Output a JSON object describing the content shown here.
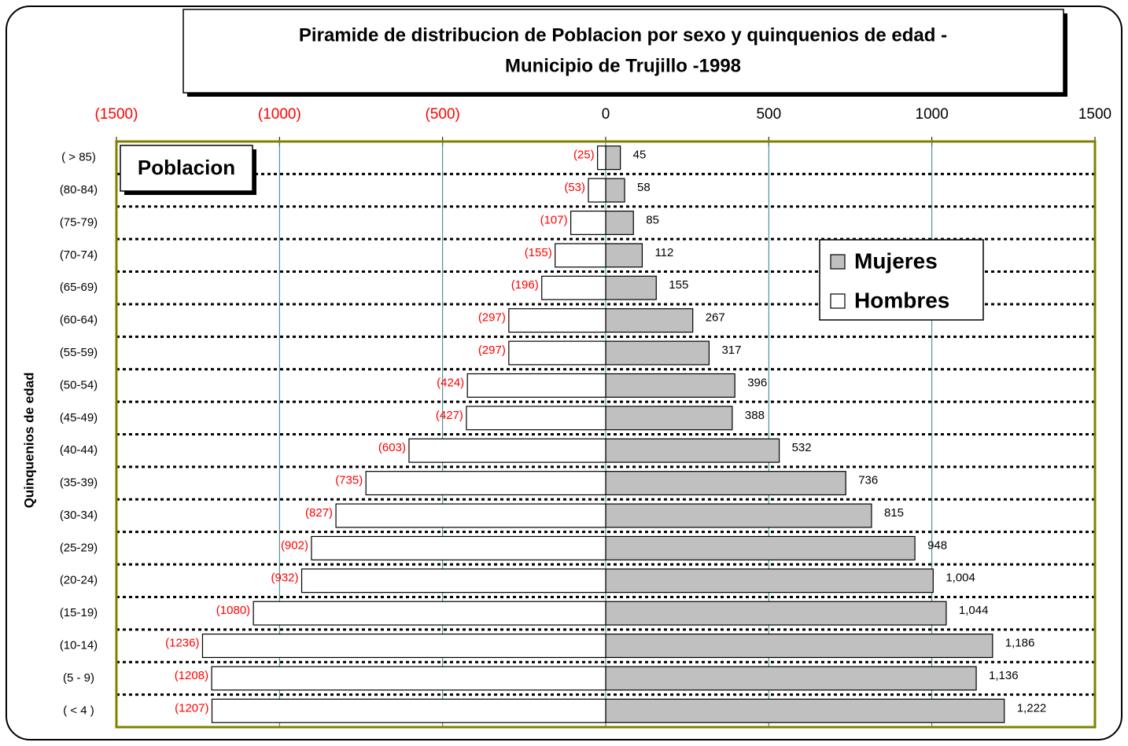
{
  "chart_data": {
    "type": "pyramid",
    "title": [
      "Piramide de distribucion de Poblacion por sexo y quinquenios de edad -",
      "Municipio de Trujillo -1998"
    ],
    "annotation": "Poblacion",
    "y_label": "Quinquenios de edad",
    "categories": [
      "( > 85)",
      "(80-84)",
      "(75-79)",
      "(70-74)",
      "(65-69)",
      "(60-64)",
      "(55-59)",
      "(50-54)",
      "(45-49)",
      "(40-44)",
      "(35-39)",
      "(30-34)",
      "(25-29)",
      "(20-24)",
      "(15-19)",
      "(10-14)",
      "(5  -  9)",
      "( < 4 )"
    ],
    "series": [
      {
        "name": "Mujeres",
        "color": "#c0c0c0",
        "label_color": "#000000",
        "values": [
          45,
          58,
          85,
          112,
          155,
          267,
          317,
          396,
          388,
          532,
          736,
          815,
          948,
          1004,
          1044,
          1186,
          1136,
          1222
        ],
        "value_labels": [
          "45",
          "58",
          "85",
          "112",
          "155",
          "267",
          "317",
          "396",
          "388",
          "532",
          "736",
          "815",
          "948",
          "1,004",
          "1,044",
          "1,186",
          "1,136",
          "1,222"
        ]
      },
      {
        "name": "Hombres",
        "color": "#ffffff",
        "label_color": "#ff0000",
        "values": [
          -25,
          -53,
          -107,
          -155,
          -196,
          -297,
          -297,
          -424,
          -427,
          -603,
          -735,
          -827,
          -902,
          -932,
          -1080,
          -1236,
          -1208,
          -1207
        ],
        "value_labels": [
          "(25)",
          "(53)",
          "(107)",
          "(155)",
          "(196)",
          "(297)",
          "(297)",
          "(424)",
          "(427)",
          "(603)",
          "(735)",
          "(827)",
          "(902)",
          "(932)",
          "(1080)",
          "(1236)",
          "(1208)",
          "(1207)"
        ]
      }
    ],
    "xlim": [
      -1500,
      1500
    ],
    "xticks": [
      {
        "value": -1500,
        "label": "(1500)"
      },
      {
        "value": -1000,
        "label": "(1000)"
      },
      {
        "value": -500,
        "label": "(500)"
      },
      0,
      500,
      1000,
      1500
    ],
    "negative_tick_color": "#ff0000",
    "grid": true,
    "legend": "upper right"
  }
}
